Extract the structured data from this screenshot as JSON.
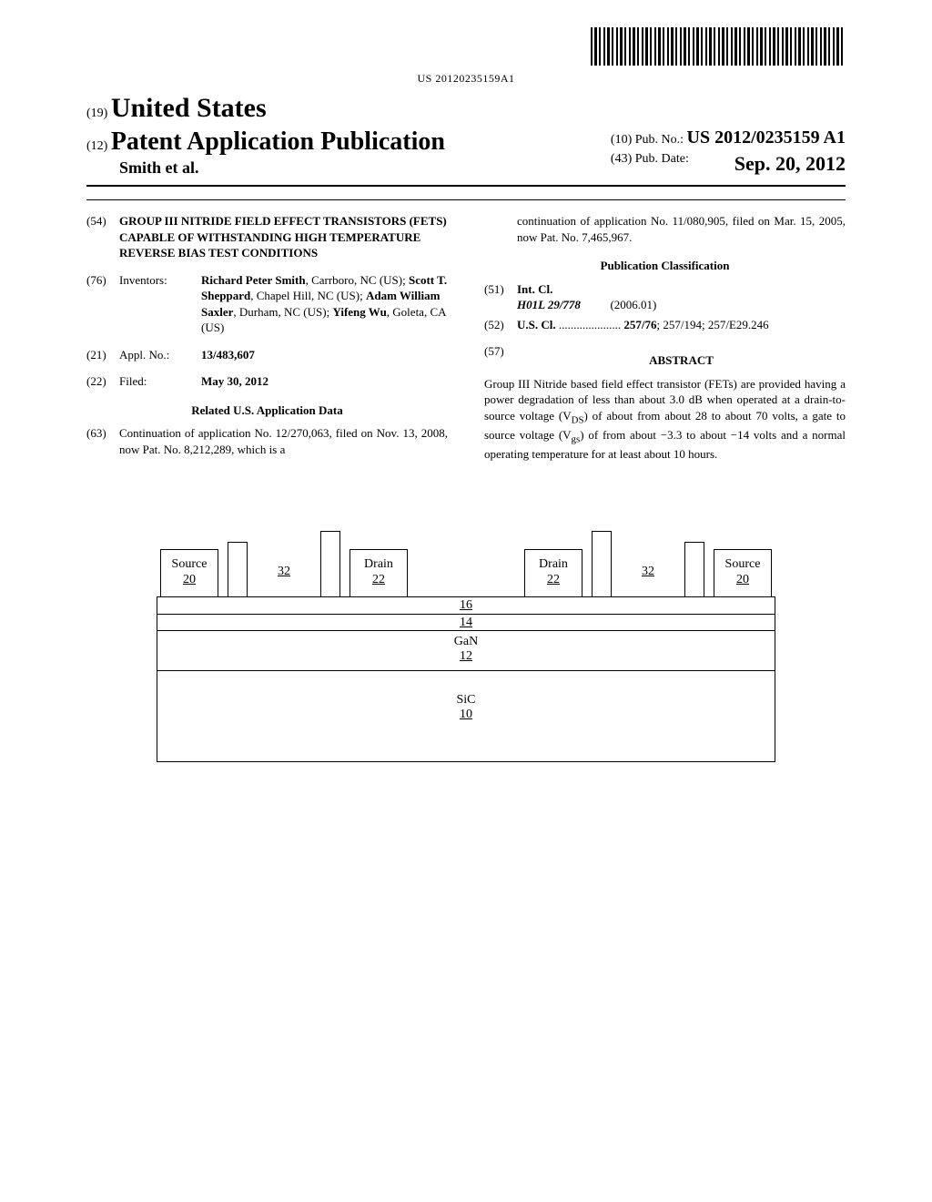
{
  "barcode_text": "US 20120235159A1",
  "header": {
    "country_prefix": "(19)",
    "country": "United States",
    "pub_prefix": "(12)",
    "pub_type": "Patent Application Publication",
    "authors": "Smith et al.",
    "pub_no_prefix": "(10)",
    "pub_no_label": "Pub. No.:",
    "pub_no": "US 2012/0235159 A1",
    "pub_date_prefix": "(43)",
    "pub_date_label": "Pub. Date:",
    "pub_date": "Sep. 20, 2012"
  },
  "left": {
    "title_num": "(54)",
    "title": "GROUP III NITRIDE FIELD EFFECT TRANSISTORS (FETS) CAPABLE OF WITHSTANDING HIGH TEMPERATURE REVERSE BIAS TEST CONDITIONS",
    "inventors_num": "(76)",
    "inventors_label": "Inventors:",
    "inventors_html": "<b>Richard Peter Smith</b>, Carrboro, NC (US); <b>Scott T. Sheppard</b>, Chapel Hill, NC (US); <b>Adam William Saxler</b>, Durham, NC (US); <b>Yifeng Wu</b>, Goleta, CA (US)",
    "appl_num_num": "(21)",
    "appl_num_label": "Appl. No.:",
    "appl_num": "13/483,607",
    "filed_num": "(22)",
    "filed_label": "Filed:",
    "filed": "May 30, 2012",
    "related_heading": "Related U.S. Application Data",
    "cont_num": "(63)",
    "cont_text": "Continuation of application No. 12/270,063, filed on Nov. 13, 2008, now Pat. No. 8,212,289, which is a"
  },
  "right": {
    "cont_continued": "continuation of application No. 11/080,905, filed on Mar. 15, 2005, now Pat. No. 7,465,967.",
    "classification_heading": "Publication Classification",
    "intcl_num": "(51)",
    "intcl_label": "Int. Cl.",
    "intcl_code": "H01L 29/778",
    "intcl_date": "(2006.01)",
    "uscl_num": "(52)",
    "uscl_label": "U.S. Cl.",
    "uscl_dots": ".....................",
    "uscl_codes": "257/76; 257/194; 257/E29.246",
    "abstract_num": "(57)",
    "abstract_label": "ABSTRACT",
    "abstract_text": "Group III Nitride based field effect transistor (FETs) are provided having a power degradation of less than about 3.0 dB when operated at a drain-to-source voltage (V_DS) of about from about 28 to about 70 volts, a gate to source voltage (V_gs) of from about −3.3 to about −14 volts and a normal operating temperature for at least about 10 hours."
  },
  "diagram": {
    "source": "Source",
    "source_ref": "20",
    "drain": "Drain",
    "drain_ref": "22",
    "gate_ref": "32",
    "layer16": "16",
    "layer14": "14",
    "gan": "GaN",
    "gan_ref": "12",
    "sic": "SiC",
    "sic_ref": "10"
  }
}
